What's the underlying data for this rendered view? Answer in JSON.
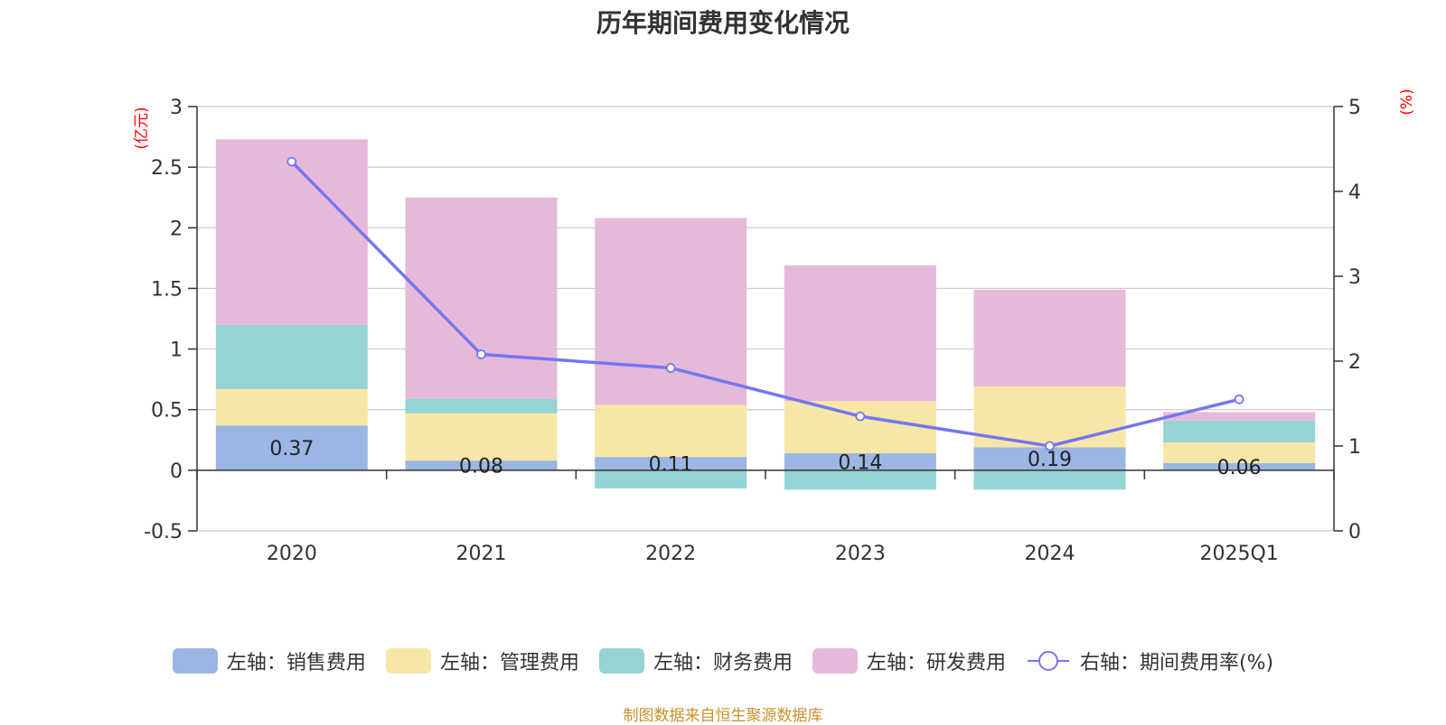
{
  "chart_data": {
    "type": "bar",
    "title": "历年期间费用变化情况",
    "categories": [
      "2020",
      "2021",
      "2022",
      "2023",
      "2024",
      "2025Q1"
    ],
    "left_axis": {
      "unit_label": "(亿元)",
      "ylim": [
        -0.5,
        3
      ],
      "ticks": [
        "3",
        "2.5",
        "2",
        "1.5",
        "1",
        "0.5",
        "0",
        "-0.5"
      ]
    },
    "right_axis": {
      "unit_label": "(%)",
      "ylim": [
        0,
        5
      ],
      "ticks": [
        "5",
        "4",
        "3",
        "2",
        "1",
        "0"
      ]
    },
    "series": [
      {
        "name": "左轴：销售费用",
        "color": "#9bb6e2",
        "values": [
          0.37,
          0.08,
          0.11,
          0.14,
          0.19,
          0.06
        ]
      },
      {
        "name": "左轴：管理费用",
        "color": "#f7e7a7",
        "values": [
          0.3,
          0.39,
          0.43,
          0.43,
          0.5,
          0.17
        ]
      },
      {
        "name": "左轴：财务费用",
        "color": "#96d4d4",
        "values": [
          0.53,
          0.12,
          -0.15,
          -0.16,
          -0.16,
          0.18
        ]
      },
      {
        "name": "左轴：研发费用",
        "color": "#e7b9d9",
        "values": [
          1.53,
          1.66,
          1.54,
          1.12,
          0.8,
          0.07
        ]
      }
    ],
    "line_series": {
      "name": "右轴：期间费用率(%)",
      "color": "#7477f0",
      "values": [
        4.35,
        2.08,
        1.92,
        1.35,
        1.0,
        1.55
      ]
    },
    "data_labels": [
      "0.37",
      "0.08",
      "0.11",
      "0.14",
      "0.19",
      "0.06"
    ]
  },
  "source_text": "制图数据来自恒生聚源数据库"
}
